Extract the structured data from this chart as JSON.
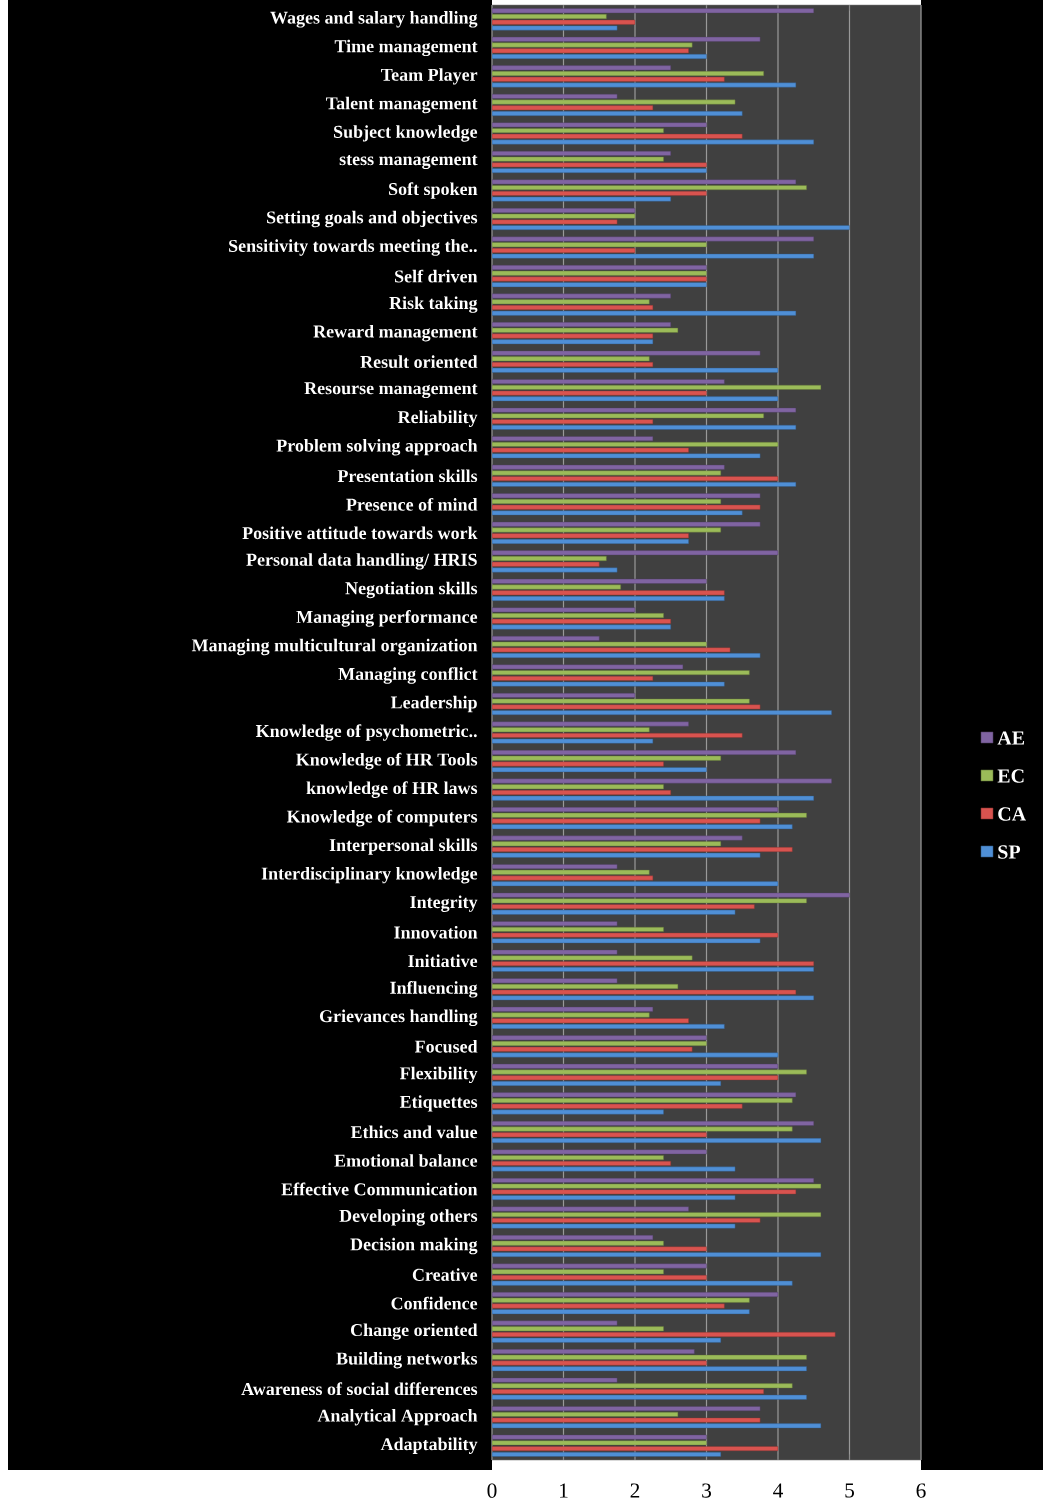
{
  "chart_data": {
    "type": "bar",
    "orientation": "horizontal",
    "grid": "x",
    "legend": "right",
    "xlim": [
      0,
      6
    ],
    "xticks": [
      0,
      1,
      2,
      3,
      4,
      5,
      6
    ],
    "categories": [
      "Wages and salary handling",
      "Time management",
      "Team Player",
      "Talent management",
      "Subject knowledge",
      "stess management",
      "Soft spoken",
      "Setting goals and objectives",
      "Sensitivity towards meeting the..",
      "Self driven",
      "Risk taking",
      "Reward management",
      "Result oriented",
      "Resourse management",
      "Reliability",
      "Problem solving approach",
      "Presentation skills",
      "Presence of mind",
      "Positive attitude towards work",
      "Personal data handling/ HRIS",
      "Negotiation skills",
      "Managing performance",
      "Managing multicultural organization",
      "Managing conflict",
      "Leadership",
      "Knowledge of psychometric..",
      "Knowledge of HR Tools",
      "knowledge of HR laws",
      "Knowledge of computers",
      "Interpersonal skills",
      "Interdisciplinary knowledge",
      "Integrity",
      "Innovation",
      "Initiative",
      "Influencing",
      "Grievances handling",
      "Focused",
      "Flexibility",
      "Etiquettes",
      "Ethics and value",
      "Emotional balance",
      "Effective Communication",
      "Developing others",
      "Decision making",
      "Creative",
      "Confidence",
      "Change oriented",
      "Building networks",
      "Awareness of social differences",
      "Analytical Approach",
      "Adaptability"
    ],
    "series": [
      {
        "name": "AE",
        "color": "#8064a2",
        "values": [
          4.5,
          3.75,
          2.5,
          1.75,
          3.0,
          2.5,
          4.25,
          2.0,
          4.5,
          3.0,
          2.5,
          2.5,
          3.75,
          3.25,
          4.25,
          2.25,
          3.25,
          3.75,
          3.75,
          4.0,
          3.0,
          2.0,
          1.5,
          2.67,
          2.0,
          2.75,
          4.25,
          4.75,
          4.0,
          3.5,
          1.75,
          5.0,
          1.75,
          1.75,
          1.75,
          2.25,
          3.0,
          4.0,
          4.25,
          4.5,
          3.0,
          4.5,
          2.75,
          2.25,
          3.0,
          4.0,
          1.75,
          2.83,
          1.75,
          3.75,
          3.0
        ]
      },
      {
        "name": "EC",
        "color": "#9bbb59",
        "values": [
          1.6,
          2.8,
          3.8,
          3.4,
          2.4,
          2.4,
          4.4,
          2.0,
          3.0,
          3.0,
          2.2,
          2.6,
          2.2,
          4.6,
          3.8,
          4.0,
          3.2,
          3.2,
          3.2,
          1.6,
          1.8,
          2.4,
          3.0,
          3.6,
          3.6,
          2.2,
          3.2,
          2.4,
          4.4,
          3.2,
          2.2,
          4.4,
          2.4,
          2.8,
          2.6,
          2.2,
          3.0,
          4.4,
          4.2,
          4.2,
          2.4,
          4.6,
          4.6,
          2.4,
          2.4,
          3.6,
          2.4,
          4.4,
          4.2,
          2.6,
          3.0
        ]
      },
      {
        "name": "CA",
        "color": "#d9534f",
        "values": [
          2.0,
          2.75,
          3.25,
          2.25,
          3.5,
          3.0,
          3.0,
          1.75,
          2.0,
          3.0,
          2.25,
          2.25,
          2.25,
          3.0,
          2.25,
          2.75,
          4.0,
          3.75,
          2.75,
          1.5,
          3.25,
          2.5,
          3.33,
          2.25,
          3.75,
          3.5,
          2.4,
          2.5,
          3.75,
          4.2,
          2.25,
          3.67,
          4.0,
          4.5,
          4.25,
          2.75,
          2.8,
          4.0,
          3.5,
          3.0,
          2.5,
          4.25,
          3.75,
          3.0,
          3.0,
          3.25,
          4.8,
          3.0,
          3.8,
          3.75,
          4.0
        ]
      },
      {
        "name": "SP",
        "color": "#4f8fd6",
        "values": [
          1.75,
          3.0,
          4.25,
          3.5,
          4.5,
          3.0,
          2.5,
          5.0,
          4.5,
          3.0,
          4.25,
          2.25,
          4.0,
          4.0,
          4.25,
          3.75,
          4.25,
          3.5,
          2.75,
          1.75,
          3.25,
          2.5,
          3.75,
          3.25,
          4.75,
          2.25,
          3.0,
          4.5,
          4.2,
          3.75,
          4.0,
          3.4,
          3.75,
          4.5,
          4.5,
          3.25,
          4.0,
          3.2,
          2.4,
          4.6,
          3.4,
          3.4,
          3.4,
          4.6,
          4.2,
          3.6,
          3.2,
          4.4,
          4.4,
          4.6,
          3.2
        ]
      }
    ]
  }
}
